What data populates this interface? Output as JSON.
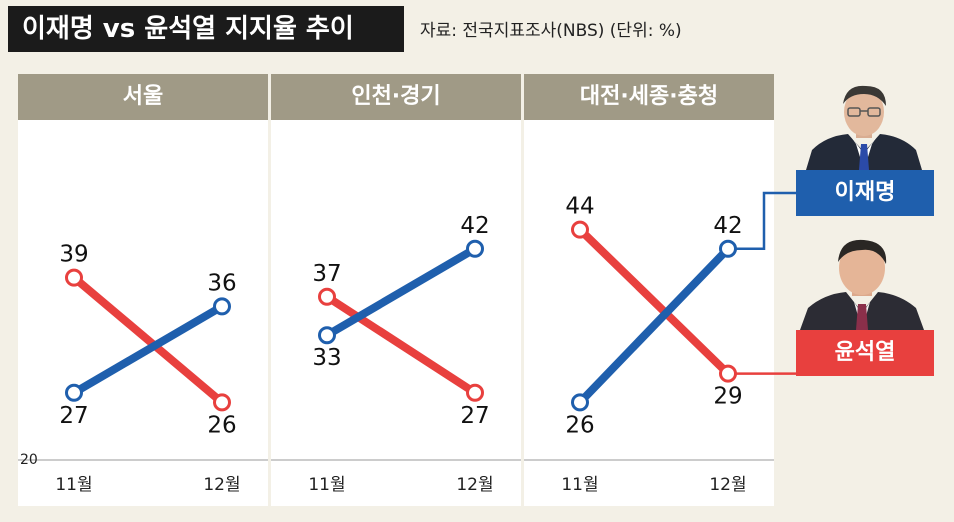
{
  "header": {
    "title": "이재명 vs 윤석열 지지율 추이",
    "source": "자료: 전국지표조사(NBS) (단위: %)"
  },
  "legend": [
    {
      "name": "이재명",
      "color": "#1f5fad"
    },
    {
      "name": "윤석열",
      "color": "#e8403e"
    }
  ],
  "chart_data": [
    {
      "type": "line",
      "title": "서울",
      "categories": [
        "11월",
        "12월"
      ],
      "y_min_label": "20",
      "ylim": [
        20,
        50
      ],
      "series": [
        {
          "name": "이재명",
          "color": "#1f5fad",
          "values": [
            27,
            36
          ]
        },
        {
          "name": "윤석열",
          "color": "#e8403e",
          "values": [
            39,
            26
          ]
        }
      ]
    },
    {
      "type": "line",
      "title": "인천·경기",
      "categories": [
        "11월",
        "12월"
      ],
      "ylim": [
        20,
        50
      ],
      "series": [
        {
          "name": "이재명",
          "color": "#1f5fad",
          "values": [
            33,
            42
          ]
        },
        {
          "name": "윤석열",
          "color": "#e8403e",
          "values": [
            37,
            27
          ]
        }
      ]
    },
    {
      "type": "line",
      "title": "대전·세종·충청",
      "categories": [
        "11월",
        "12월"
      ],
      "ylim": [
        20,
        50
      ],
      "series": [
        {
          "name": "이재명",
          "color": "#1f5fad",
          "values": [
            26,
            42
          ]
        },
        {
          "name": "윤석열",
          "color": "#e8403e",
          "values": [
            44,
            29
          ]
        }
      ]
    }
  ]
}
